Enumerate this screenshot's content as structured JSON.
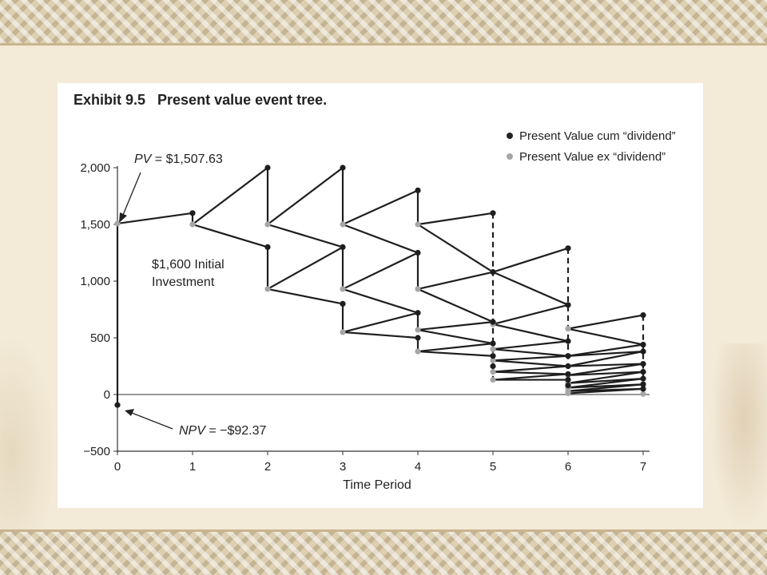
{
  "chart_data": {
    "type": "line",
    "title": "Exhibit 9.5   Present value event tree.",
    "xlabel": "Time Period",
    "ylabel": "",
    "xlim": [
      0,
      7
    ],
    "ylim": [
      -500,
      2000
    ],
    "x_ticks": [
      0,
      1,
      2,
      3,
      4,
      5,
      6,
      7
    ],
    "y_ticks": [
      -500,
      0,
      500,
      1000,
      1500,
      2000
    ],
    "y_tick_labels": [
      "−500",
      "0",
      "500",
      "1,000",
      "1,500",
      "2,000"
    ],
    "legend_position": "top-right",
    "series": [
      {
        "name": "Present Value cum “dividend”",
        "color": "#222222"
      },
      {
        "name": "Present Value ex “dividend”",
        "color": "#a6a6a6"
      }
    ],
    "initial_investment_label_1": "$1,600 Initial",
    "initial_investment_label_2": "Investment",
    "pv_label_prefix": "PV",
    "pv_label_value": " = $1,507.63",
    "npv_label_prefix": "NPV",
    "npv_label_value": " = −$92.37",
    "pv_value": 1507.63,
    "npv_value": -92.37,
    "initial_investment": 1600,
    "cum_points": [
      [
        0,
        -92.37
      ],
      [
        1,
        1600
      ],
      [
        2,
        2000
      ],
      [
        2,
        1300
      ],
      [
        3,
        2000
      ],
      [
        3,
        1300
      ],
      [
        3,
        800
      ],
      [
        4,
        1800
      ],
      [
        4,
        1250
      ],
      [
        4,
        720
      ],
      [
        4,
        500
      ],
      [
        5,
        1600
      ],
      [
        5,
        1080
      ],
      [
        5,
        640
      ],
      [
        5,
        450
      ],
      [
        5,
        340
      ],
      [
        5,
        250
      ],
      [
        6,
        1290
      ],
      [
        6,
        790
      ],
      [
        6,
        470
      ],
      [
        6,
        340
      ],
      [
        6,
        250
      ],
      [
        6,
        180
      ],
      [
        6,
        130
      ],
      [
        6,
        80
      ],
      [
        7,
        700
      ],
      [
        7,
        440
      ],
      [
        7,
        380
      ],
      [
        7,
        270
      ],
      [
        7,
        200
      ],
      [
        7,
        140
      ],
      [
        7,
        90
      ],
      [
        7,
        50
      ]
    ],
    "ex_points": [
      [
        0,
        1507.63
      ],
      [
        1,
        1500
      ],
      [
        2,
        1500
      ],
      [
        2,
        930
      ],
      [
        3,
        1500
      ],
      [
        3,
        930
      ],
      [
        3,
        550
      ],
      [
        4,
        1500
      ],
      [
        4,
        930
      ],
      [
        4,
        570
      ],
      [
        4,
        380
      ],
      [
        5,
        1080
      ],
      [
        5,
        620
      ],
      [
        5,
        400
      ],
      [
        5,
        300
      ],
      [
        5,
        200
      ],
      [
        5,
        130
      ],
      [
        6,
        580
      ],
      [
        6,
        340
      ],
      [
        6,
        250
      ],
      [
        6,
        170
      ],
      [
        6,
        100
      ],
      [
        6,
        60
      ],
      [
        6,
        30
      ],
      [
        6,
        10
      ],
      [
        7,
        5
      ]
    ],
    "edges": [
      [
        [
          0,
          1507.63
        ],
        [
          1,
          1600
        ]
      ],
      [
        [
          1,
          1500
        ],
        [
          2,
          2000
        ]
      ],
      [
        [
          1,
          1500
        ],
        [
          2,
          1300
        ]
      ],
      [
        [
          2,
          1500
        ],
        [
          3,
          2000
        ]
      ],
      [
        [
          2,
          1500
        ],
        [
          3,
          1300
        ]
      ],
      [
        [
          2,
          930
        ],
        [
          3,
          1300
        ]
      ],
      [
        [
          2,
          930
        ],
        [
          3,
          800
        ]
      ],
      [
        [
          3,
          1500
        ],
        [
          4,
          1800
        ]
      ],
      [
        [
          3,
          1500
        ],
        [
          4,
          1250
        ]
      ],
      [
        [
          3,
          930
        ],
        [
          4,
          1250
        ]
      ],
      [
        [
          3,
          930
        ],
        [
          4,
          720
        ]
      ],
      [
        [
          3,
          550
        ],
        [
          4,
          720
        ]
      ],
      [
        [
          3,
          550
        ],
        [
          4,
          500
        ]
      ],
      [
        [
          4,
          1500
        ],
        [
          5,
          1600
        ]
      ],
      [
        [
          4,
          1500
        ],
        [
          5,
          1080
        ]
      ],
      [
        [
          4,
          930
        ],
        [
          5,
          1080
        ]
      ],
      [
        [
          4,
          930
        ],
        [
          5,
          640
        ]
      ],
      [
        [
          4,
          570
        ],
        [
          5,
          640
        ]
      ],
      [
        [
          4,
          570
        ],
        [
          5,
          450
        ]
      ],
      [
        [
          4,
          380
        ],
        [
          5,
          450
        ]
      ],
      [
        [
          4,
          380
        ],
        [
          5,
          340
        ]
      ],
      [
        [
          5,
          1080
        ],
        [
          6,
          1290
        ]
      ],
      [
        [
          5,
          1080
        ],
        [
          6,
          790
        ]
      ],
      [
        [
          5,
          620
        ],
        [
          6,
          790
        ]
      ],
      [
        [
          5,
          620
        ],
        [
          6,
          470
        ]
      ],
      [
        [
          5,
          400
        ],
        [
          6,
          470
        ]
      ],
      [
        [
          5,
          400
        ],
        [
          6,
          340
        ]
      ],
      [
        [
          5,
          300
        ],
        [
          6,
          340
        ]
      ],
      [
        [
          5,
          300
        ],
        [
          6,
          250
        ]
      ],
      [
        [
          5,
          200
        ],
        [
          6,
          250
        ]
      ],
      [
        [
          5,
          200
        ],
        [
          6,
          180
        ]
      ],
      [
        [
          5,
          130
        ],
        [
          6,
          180
        ]
      ],
      [
        [
          5,
          130
        ],
        [
          6,
          130
        ]
      ],
      [
        [
          6,
          580
        ],
        [
          7,
          700
        ]
      ],
      [
        [
          6,
          580
        ],
        [
          7,
          440
        ]
      ],
      [
        [
          6,
          340
        ],
        [
          7,
          440
        ]
      ],
      [
        [
          6,
          340
        ],
        [
          7,
          380
        ]
      ],
      [
        [
          6,
          250
        ],
        [
          7,
          380
        ]
      ],
      [
        [
          6,
          250
        ],
        [
          7,
          270
        ]
      ],
      [
        [
          6,
          170
        ],
        [
          7,
          270
        ]
      ],
      [
        [
          6,
          170
        ],
        [
          7,
          200
        ]
      ],
      [
        [
          6,
          100
        ],
        [
          7,
          200
        ]
      ],
      [
        [
          6,
          100
        ],
        [
          7,
          140
        ]
      ],
      [
        [
          6,
          60
        ],
        [
          7,
          140
        ]
      ],
      [
        [
          6,
          60
        ],
        [
          7,
          90
        ]
      ],
      [
        [
          6,
          30
        ],
        [
          7,
          90
        ]
      ],
      [
        [
          6,
          30
        ],
        [
          7,
          50
        ]
      ],
      [
        [
          6,
          10
        ],
        [
          7,
          50
        ]
      ]
    ],
    "drops": [
      [
        [
          0,
          1507.63
        ],
        [
          0,
          -92.37
        ],
        "solid"
      ],
      [
        [
          1,
          1600
        ],
        [
          1,
          1500
        ],
        "solid"
      ],
      [
        [
          2,
          2000
        ],
        [
          2,
          1500
        ],
        "solid"
      ],
      [
        [
          2,
          1300
        ],
        [
          2,
          930
        ],
        "solid"
      ],
      [
        [
          3,
          2000
        ],
        [
          3,
          1500
        ],
        "solid"
      ],
      [
        [
          3,
          1300
        ],
        [
          3,
          930
        ],
        "solid"
      ],
      [
        [
          3,
          800
        ],
        [
          3,
          550
        ],
        "solid"
      ],
      [
        [
          4,
          1800
        ],
        [
          4,
          1500
        ],
        "solid"
      ],
      [
        [
          4,
          1250
        ],
        [
          4,
          930
        ],
        "solid"
      ],
      [
        [
          4,
          720
        ],
        [
          4,
          570
        ],
        "solid"
      ],
      [
        [
          4,
          500
        ],
        [
          4,
          380
        ],
        "solid"
      ],
      [
        [
          5,
          1600
        ],
        [
          5,
          130
        ],
        "dashed"
      ],
      [
        [
          6,
          1290
        ],
        [
          6,
          10
        ],
        "dashed"
      ],
      [
        [
          7,
          700
        ],
        [
          7,
          5
        ],
        "dashed"
      ]
    ]
  }
}
